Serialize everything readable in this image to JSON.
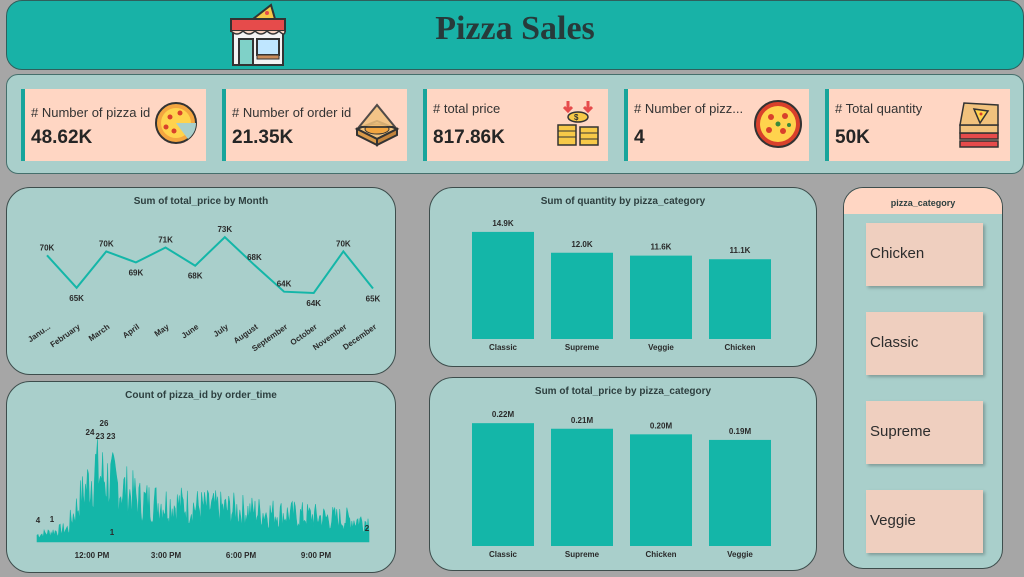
{
  "header": {
    "title": "Pizza Sales",
    "icon": "pizza-store-icon"
  },
  "kpis": [
    {
      "label": "# Number of pizza id",
      "value": "48.62K",
      "icon": "pizza-slice-icon"
    },
    {
      "label": "# Number of order id",
      "value": "21.35K",
      "icon": "pizza-box-icon"
    },
    {
      "label": "# total price",
      "value": "817.86K",
      "icon": "coins-icon"
    },
    {
      "label": "# Number of pizz...",
      "value": "4",
      "icon": "pizza-icon"
    },
    {
      "label": "# Total quantity",
      "value": "50K",
      "icon": "pizza-delivery-box-icon"
    }
  ],
  "slicer": {
    "title": "pizza_category",
    "items": [
      "Chicken",
      "Classic",
      "Supreme",
      "Veggie"
    ]
  },
  "colors": {
    "accent": "#18b2a7",
    "panel": "#a9cfcb",
    "card": "#ffd6c3",
    "bar": "#14b6a8"
  },
  "chart_data": [
    {
      "type": "line",
      "title": "Sum of total_price by Month",
      "categories": [
        "Janu...",
        "February",
        "March",
        "April",
        "May",
        "June",
        "July",
        "August",
        "September",
        "October",
        "November",
        "December"
      ],
      "values": [
        69.8,
        64.8,
        70.4,
        68.7,
        71.0,
        68.2,
        72.6,
        68.3,
        64.2,
        64.0,
        70.4,
        64.7
      ],
      "labels": [
        "70K",
        "65K",
        "70K",
        "69K",
        "71K",
        "68K",
        "73K",
        "68K",
        "64K",
        "64K",
        "70K",
        "65K"
      ],
      "ylim": [
        62,
        74
      ]
    },
    {
      "type": "bar",
      "title": "Sum of quantity by pizza_category",
      "categories": [
        "Classic",
        "Supreme",
        "Veggie",
        "Chicken"
      ],
      "values": [
        14.9,
        12.0,
        11.6,
        11.1
      ],
      "labels": [
        "14.9K",
        "12.0K",
        "11.6K",
        "11.1K"
      ],
      "ylim": [
        0,
        16
      ]
    },
    {
      "type": "area",
      "title": "Count of pizza_id by order_time",
      "xticks": [
        "12:00 PM",
        "3:00 PM",
        "6:00 PM",
        "9:00 PM"
      ],
      "point_labels": [
        "4",
        "1",
        "24",
        "26",
        "23",
        "23",
        "1",
        "2"
      ],
      "ylim": [
        0,
        28
      ]
    },
    {
      "type": "bar",
      "title": "Sum of total_price by pizza_category",
      "categories": [
        "Classic",
        "Supreme",
        "Chicken",
        "Veggie"
      ],
      "values": [
        0.22,
        0.21,
        0.2,
        0.19
      ],
      "labels": [
        "0.22M",
        "0.21M",
        "0.20M",
        "0.19M"
      ],
      "ylim": [
        0,
        0.24
      ]
    }
  ]
}
